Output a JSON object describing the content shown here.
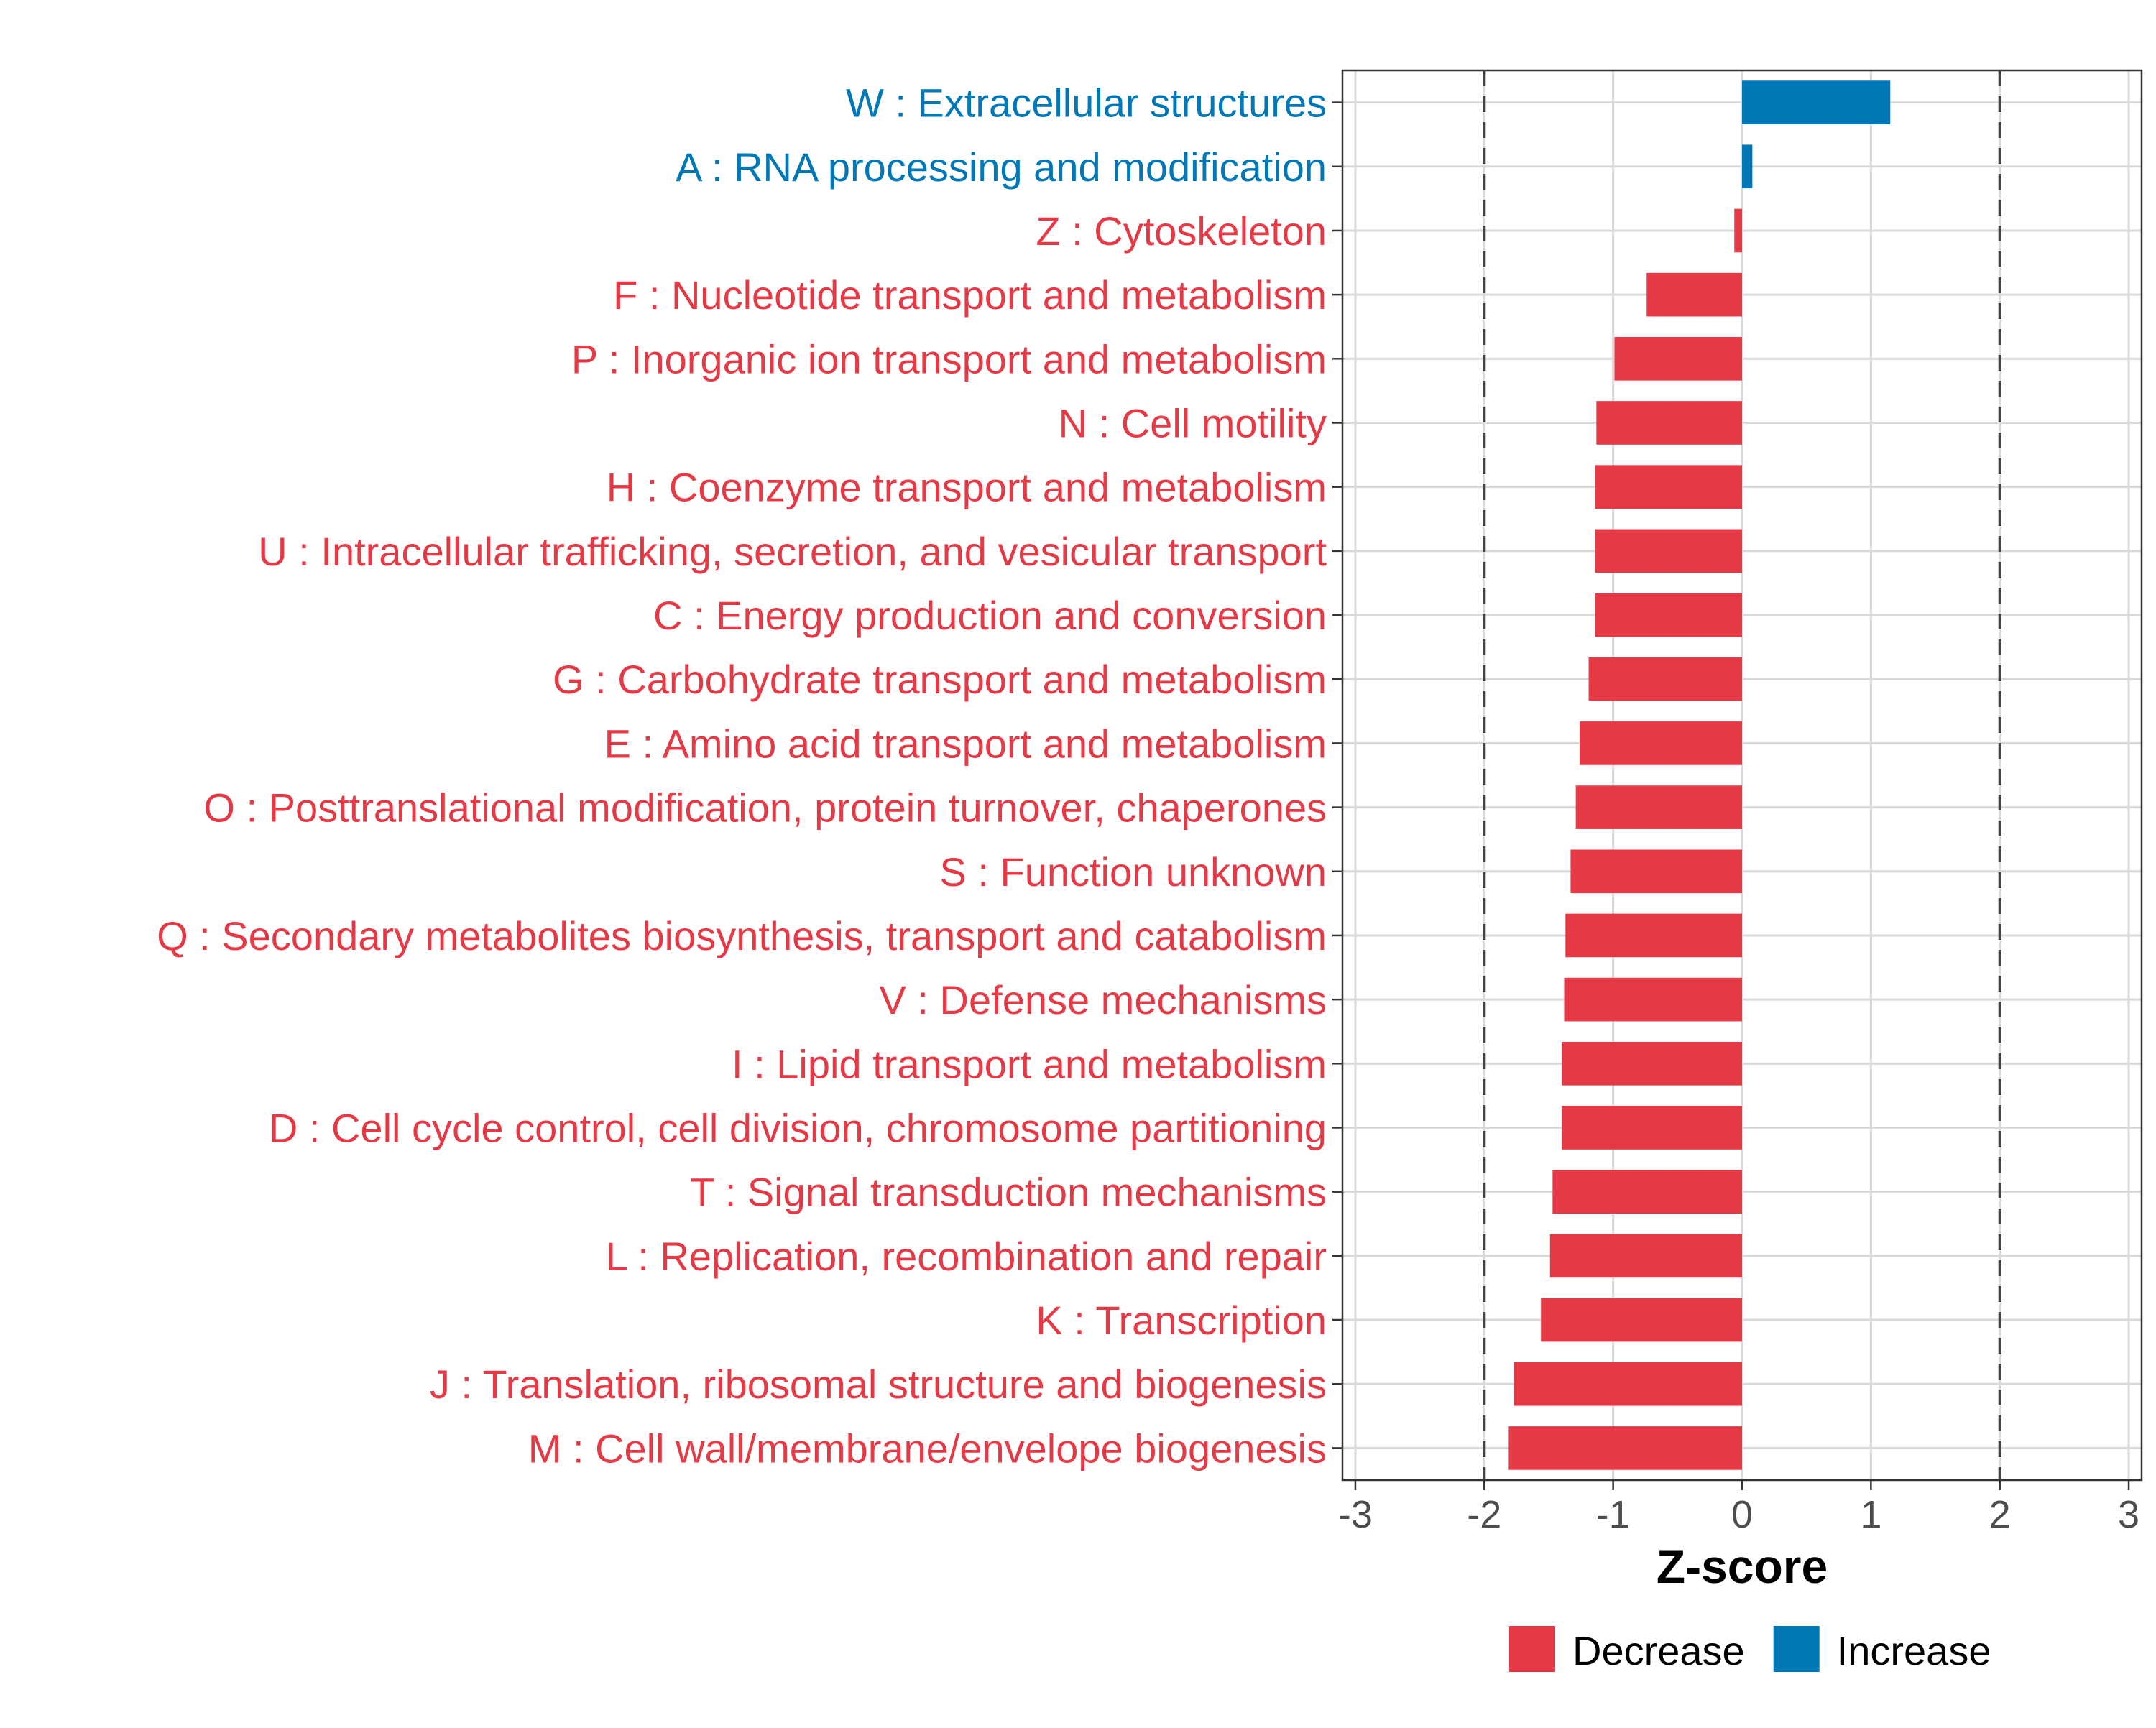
{
  "chart_data": {
    "type": "bar",
    "orientation": "horizontal",
    "title": "",
    "xlabel": "Z-score",
    "ylabel": "",
    "xlim": [
      -3.1,
      3.1
    ],
    "x_ticks": [
      -3,
      -2,
      -1,
      0,
      1,
      2,
      3
    ],
    "x_tick_labels": [
      "-3",
      "-2",
      "-1",
      "0",
      "1",
      "2",
      "3"
    ],
    "reference_lines": [
      -2,
      2
    ],
    "grid": true,
    "legend_position": "bottom",
    "colors": {
      "Decrease": "#e63946",
      "Increase": "#0077b6"
    },
    "legend": [
      {
        "label": "Decrease",
        "group": "Decrease"
      },
      {
        "label": "Increase",
        "group": "Increase"
      }
    ],
    "categories": [
      "W : Extracellular structures",
      "A : RNA processing and modification",
      "Z : Cytoskeleton",
      "F : Nucleotide transport and metabolism",
      "P : Inorganic ion transport and metabolism",
      "N : Cell motility",
      "H : Coenzyme transport and metabolism",
      "U : Intracellular trafficking, secretion, and vesicular transport",
      "C : Energy production and conversion",
      "G : Carbohydrate transport and metabolism",
      "E : Amino acid transport and metabolism",
      "O : Posttranslational modification, protein turnover, chaperones",
      "S : Function unknown",
      "Q : Secondary metabolites biosynthesis, transport and catabolism",
      "V : Defense mechanisms",
      "I : Lipid transport and metabolism",
      "D : Cell cycle control, cell division, chromosome partitioning",
      "T : Signal transduction mechanisms",
      "L : Replication, recombination and repair",
      "K : Transcription",
      "J : Translation, ribosomal structure and biogenesis",
      "M : Cell wall/membrane/envelope biogenesis"
    ],
    "values": [
      1.15,
      0.08,
      -0.06,
      -0.74,
      -0.99,
      -1.13,
      -1.14,
      -1.14,
      -1.14,
      -1.19,
      -1.26,
      -1.29,
      -1.33,
      -1.37,
      -1.38,
      -1.4,
      -1.4,
      -1.47,
      -1.49,
      -1.56,
      -1.77,
      -1.81
    ],
    "groups": [
      "Increase",
      "Increase",
      "Decrease",
      "Decrease",
      "Decrease",
      "Decrease",
      "Decrease",
      "Decrease",
      "Decrease",
      "Decrease",
      "Decrease",
      "Decrease",
      "Decrease",
      "Decrease",
      "Decrease",
      "Decrease",
      "Decrease",
      "Decrease",
      "Decrease",
      "Decrease",
      "Decrease",
      "Decrease"
    ]
  }
}
